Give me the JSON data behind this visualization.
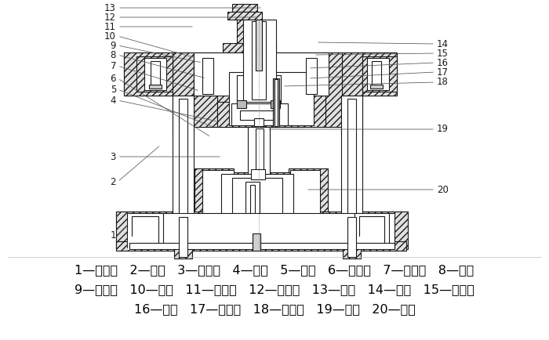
{
  "bg_color": "#ffffff",
  "text_color": "#000000",
  "lc": "#1a1a1a",
  "hatch_fc": "#e0e0e0",
  "line1": "1—下模座   2—导柱   3—凸模座   4—凸模   5—套管   6—定位销   7—上模座   8—螺钉",
  "line2": "9—凹模座   10—导套   11—传力柱   12—打料杆   13—模柄   14—销子   15—传力杆",
  "line3": "16—垫板   17—推料板   18—推件器   19—凹模   20—销子",
  "font_size": 11.5,
  "label_font": 8.5,
  "left_labels": {
    "nums": [
      "13",
      "12",
      "11",
      "10",
      "9",
      "8",
      "7",
      "6",
      "5",
      "4",
      "3",
      "2",
      "1"
    ],
    "xtext": 147,
    "xtip": [
      335,
      330,
      248,
      250,
      258,
      263,
      255,
      269,
      274,
      278,
      283,
      205,
      165
    ],
    "ytext": [
      10,
      22,
      34,
      46,
      58,
      70,
      84,
      100,
      114,
      128,
      200,
      232,
      300
    ],
    "ytip": [
      10,
      22,
      34,
      74,
      80,
      100,
      116,
      175,
      163,
      155,
      200,
      185,
      285
    ]
  },
  "right_labels": {
    "nums": [
      "14",
      "15",
      "16",
      "17",
      "18",
      "19",
      "20"
    ],
    "xtext": 560,
    "xtip": [
      403,
      400,
      393,
      393,
      360,
      340,
      390
    ],
    "ytext": [
      56,
      68,
      80,
      92,
      105,
      165,
      242
    ],
    "ytip": [
      54,
      70,
      87,
      100,
      110,
      165,
      242
    ]
  }
}
